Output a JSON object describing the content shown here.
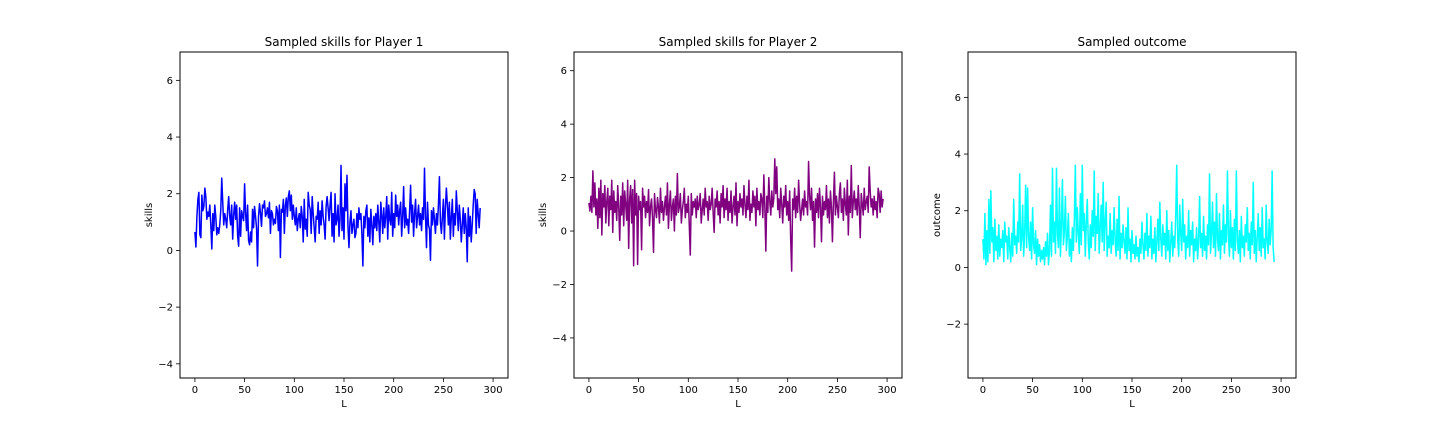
{
  "chart_data": [
    {
      "type": "line",
      "title": "Sampled skills for Player 1",
      "xlabel": "L",
      "ylabel": "skills",
      "xlim": [
        -15,
        315
      ],
      "ylim": [
        -4.5,
        7.0
      ],
      "xticks": [
        0,
        50,
        100,
        150,
        200,
        250,
        300
      ],
      "yticks": [
        -4,
        -2,
        0,
        2,
        4,
        6
      ],
      "grid": false,
      "series": [
        {
          "color": "#0000ff",
          "y": [
            0.65,
            0.12,
            1.2,
            1.8,
            2.05,
            0.55,
            0.45,
            1.95,
            1.4,
            1.55,
            2.2,
            1.9,
            1.1,
            1.35,
            1.2,
            1.6,
            0.9,
            0.05,
            1.3,
            0.7,
            1.6,
            1.2,
            0.55,
            0.8,
            0.6,
            0.9,
            1.4,
            2.55,
            1.7,
            0.9,
            1.3,
            1.1,
            0.8,
            1.45,
            1.9,
            1.2,
            0.9,
            1.6,
            0.4,
            1.25,
            1.7,
            1.1,
            1.6,
            0.5,
            0.15,
            1.5,
            0.5,
            1.4,
            1.2,
            1.05,
            2.35,
            1.3,
            0.7,
            1.6,
            0.35,
            0.2,
            0.65,
            0.3,
            1.45,
            0.8,
            1.55,
            1.2,
            0.8,
            -0.55,
            1.2,
            1.65,
            1.3,
            0.85,
            1.6,
            1.5,
            1.75,
            1.2,
            1.3,
            1.5,
            1.15,
            1.7,
            0.6,
            1.4,
            1.3,
            0.9,
            1.1,
            0.95,
            1.55,
            1.4,
            0.7,
            1.6,
            -0.25,
            1.45,
            1.35,
            1.8,
            0.6,
            1.6,
            1.85,
            1.2,
            1.9,
            2.1,
            1.4,
            1.95,
            1.1,
            1.6,
            1.2,
            0.9,
            1.5,
            0.7,
            1.1,
            1.3,
            0.8,
            1.55,
            1.2,
            0.3,
            1.8,
            0.75,
            1.1,
            0.5,
            2.05,
            1.6,
            1.45,
            0.6,
            1.9,
            1.3,
            0.8,
            0.3,
            1.2,
            1.1,
            1.7,
            0.6,
            1.4,
            0.9,
            1.75,
            1.2,
            0.9,
            0.4,
            1.55,
            1.9,
            1.5,
            1.05,
            1.6,
            2.05,
            0.5,
            1.3,
            0.3,
            2.0,
            0.9,
            1.1,
            1.6,
            0.5,
            1.1,
            3.0,
            0.7,
            1.5,
            0.4,
            2.35,
            1.4,
            2.65,
            0.85,
            0.1,
            1.0,
            1.4,
            0.6,
            0.9,
            1.1,
            0.45,
            0.6,
            1.3,
            0.8,
            1.5,
            1.1,
            1.3,
            0.6,
            -0.55,
            1.2,
            0.8,
            1.4,
            1.6,
            0.5,
            1.15,
            0.3,
            1.45,
            0.9,
            0.2,
            1.2,
            0.8,
            1.3,
            0.7,
            1.6,
            1.0,
            0.3,
            1.7,
            1.25,
            0.6,
            1.5,
            0.8,
            1.2,
            1.9,
            0.4,
            1.6,
            1.1,
            0.9,
            2.05,
            0.5,
            1.3,
            0.8,
            1.95,
            1.2,
            1.6,
            0.9,
            1.4,
            1.7,
            0.5,
            1.2,
            2.25,
            0.8,
            1.5,
            0.9,
            1.1,
            0.6,
            1.4,
            2.3,
            1.0,
            1.6,
            0.5,
            1.3,
            1.8,
            0.8,
            1.2,
            1.6,
            0.9,
            1.3,
            0.7,
            1.5,
            1.1,
            2.9,
            1.2,
            0.1,
            1.7,
            0.9,
            0.75,
            -0.35,
            1.4,
            0.9,
            1.5,
            1.1,
            0.6,
            1.3,
            0.9,
            1.6,
            2.6,
            1.0,
            0.6,
            1.2,
            1.8,
            0.4,
            1.5,
            2.2,
            1.6,
            0.9,
            1.7,
            0.4,
            1.2,
            1.8,
            0.5,
            1.3,
            0.9,
            2.1,
            1.4,
            0.7,
            1.6,
            1.1,
            0.3,
            0.9,
            1.5,
            0.6,
            1.3,
            0.8,
            -0.4,
            1.5,
            0.5,
            1.2,
            0.3,
            0.9,
            1.6,
            2.15,
            2.0,
            0.6,
            1.8,
            1.3,
            0.8,
            1.5
          ],
          "y_note_omitted": ""
        }
      ]
    },
    {
      "type": "line",
      "title": "Sampled skills for Player 2",
      "xlabel": "L",
      "ylabel": "skills",
      "xlim": [
        -15,
        315
      ],
      "ylim": [
        -5.5,
        6.7
      ],
      "xticks": [
        0,
        50,
        100,
        150,
        200,
        250,
        300
      ],
      "yticks": [
        -4,
        -2,
        0,
        2,
        4,
        6
      ],
      "grid": false,
      "series": [
        {
          "color": "#800080",
          "y": [
            1.05,
            0.75,
            1.3,
            0.7,
            2.25,
            0.9,
            1.8,
            0.6,
            1.2,
            0.1,
            1.6,
            0.5,
            1.9,
            -0.15,
            1.4,
            0.9,
            1.7,
            0.3,
            1.1,
            1.6,
            0.2,
            1.3,
            0.8,
            1.9,
            -0.05,
            1.5,
            0.7,
            1.1,
            0.4,
            1.7,
            0.9,
            -0.35,
            1.3,
            0.6,
            1.8,
            0.2,
            1.5,
            1.0,
            0.4,
            1.9,
            -0.65,
            1.2,
            1.7,
            0.3,
            1.55,
            -1.3,
            1.9,
            0.6,
            1.4,
            -1.25,
            1.3,
            0.8,
            1.1,
            -0.7,
            1.6,
            0.9,
            1.3,
            0.5,
            1.1,
            0.7,
            1.55,
            0.2,
            0.9,
            1.2,
            0.5,
            -0.8,
            1.4,
            0.8,
            0.5,
            1.25,
            0.9,
            0.3,
            1.6,
            0.7,
            1.1,
            0.4,
            0.9,
            1.3,
            0.6,
            1.8,
            0.1,
            1.0,
            1.5,
            0.4,
            0.9,
            1.2,
            0.0,
            1.3,
            0.6,
            2.15,
            0.7,
            0.9,
            1.4,
            0.3,
            0.8,
            1.1,
            1.6,
            0.5,
            1.0,
            0.7,
            1.3,
            0.2,
            -0.9,
            1.4,
            0.6,
            1.1,
            0.9,
            1.2,
            0.5,
            1.3,
            0.8,
            1.0,
            1.4,
            0.3,
            0.8,
            1.2,
            0.6,
            1.6,
            0.9,
            1.1,
            0.4,
            1.3,
            0.8,
            1.0,
            1.6,
            0.7,
            -0.05,
            1.2,
            0.9,
            1.5,
            0.6,
            1.1,
            0.3,
            1.4,
            0.9,
            1.7,
            0.5,
            1.2,
            0.8,
            1.6,
            0.4,
            1.1,
            0.7,
            1.5,
            0.3,
            0.9,
            1.3,
            0.6,
            1.8,
            0.2,
            1.1,
            0.7,
            1.4,
            0.9,
            1.2,
            0.6,
            1.7,
            1.0,
            0.5,
            1.3,
            0.8,
            1.9,
            0.4,
            1.0,
            0.7,
            1.5,
            0.9,
            1.3,
            0.2,
            1.6,
            0.8,
            1.1,
            0.6,
            1.4,
            1.2,
            0.5,
            2.1,
            0.9,
            -0.75,
            1.3,
            0.7,
            2.0,
            1.1,
            0.6,
            1.5,
            0.9,
            1.2,
            2.7,
            1.4,
            2.4,
            0.8,
            1.2,
            0.5,
            1.6,
            1.0,
            0.3,
            1.3,
            0.9,
            1.7,
            0.6,
            1.1,
            0.4,
            1.5,
            -0.3,
            -1.5,
            1.2,
            0.8,
            1.6,
            0.5,
            1.3,
            0.7,
            1.9,
            1.0,
            0.4,
            0.8,
            1.2,
            0.6,
            1.5,
            0.9,
            1.1,
            0.6,
            2.6,
            1.3,
            0.8,
            1.6,
            0.4,
            1.1,
            -0.6,
            1.2,
            0.7,
            1.4,
            0.5,
            1.6,
            0.9,
            -0.4,
            1.3,
            0.6,
            1.1,
            0.8,
            1.7,
            0.5,
            1.2,
            0.3,
            1.5,
            0.9,
            -0.4,
            1.1,
            2.2,
            0.6,
            1.3,
            0.9,
            0.5,
            1.4,
            1.8,
            0.7,
            1.2,
            0.4,
            1.6,
            1.0,
            0.6,
            1.9,
            -0.15,
            1.3,
            0.7,
            2.45,
            0.5,
            1.1,
            1.5,
            0.8,
            1.2,
            0.6,
            1.7,
            0.9,
            -0.25,
            1.4,
            1.0,
            0.6,
            1.6,
            0.8,
            1.1,
            1.3,
            0.7,
            2.4,
            1.5,
            0.9,
            1.2,
            0.6,
            1.3,
            0.8,
            1.1,
            0.5,
            1.6,
            1.4,
            0.7,
            1.5,
            0.9,
            1.2
          ],
          "y_note_omitted": ""
        }
      ]
    },
    {
      "type": "line",
      "title": "Sampled outcome",
      "xlabel": "L",
      "ylabel": "outcome",
      "xlim": [
        -15,
        315
      ],
      "ylim": [
        -3.9,
        7.6
      ],
      "xticks": [
        0,
        50,
        100,
        150,
        200,
        250,
        300
      ],
      "yticks": [
        -2,
        0,
        2,
        4,
        6
      ],
      "grid": false,
      "series": [
        {
          "color": "#00ffff",
          "y": [
            1.0,
            0.3,
            1.9,
            0.1,
            1.3,
            0.2,
            2.4,
            0.5,
            2.7,
            0.9,
            1.4,
            0.2,
            1.7,
            0.6,
            1.1,
            0.3,
            1.5,
            0.4,
            1.0,
            0.7,
            1.3,
            0.2,
            1.6,
            0.9,
            1.1,
            0.3,
            1.4,
            0.7,
            0.2,
            1.2,
            0.4,
            2.4,
            0.8,
            1.1,
            0.5,
            1.6,
            0.9,
            3.3,
            0.6,
            1.0,
            2.2,
            0.4,
            1.2,
            2.9,
            0.7,
            2.8,
            1.1,
            0.6,
            1.6,
            0.3,
            2.1,
            0.8,
            0.5,
            1.3,
            0.1,
            1.0,
            0.4,
            0.8,
            0.2,
            0.6,
            0.3,
            0.7,
            0.1,
            0.9,
            0.4,
            1.2,
            0.1,
            0.6,
            2.2,
            0.4,
            3.5,
            0.9,
            1.6,
            0.5,
            3.5,
            1.2,
            0.7,
            2.8,
            0.4,
            1.5,
            3.1,
            0.8,
            1.3,
            2.5,
            0.6,
            1.1,
            1.9,
            0.4,
            1.0,
            0.2,
            1.4,
            0.6,
            1.7,
            3.6,
            0.9,
            2.1,
            1.2,
            0.5,
            2.6,
            0.8,
            3.6,
            1.3,
            1.9,
            0.4,
            1.6,
            2.4,
            0.9,
            0.3,
            1.5,
            0.7,
            2.0,
            1.1,
            3.4,
            0.6,
            1.8,
            1.2,
            2.6,
            0.5,
            1.4,
            2.2,
            0.9,
            3.0,
            0.6,
            1.6,
            2.3,
            0.4,
            1.1,
            0.7,
            1.9,
            0.5,
            1.3,
            0.8,
            2.1,
            1.0,
            0.4,
            1.7,
            0.6,
            2.5,
            0.3,
            1.2,
            0.7,
            1.5,
            0.9,
            0.5,
            1.4,
            0.3,
            2.1,
            0.6,
            1.0,
            0.2,
            1.3,
            0.5,
            0.8,
            0.3,
            1.1,
            0.4,
            0.7,
            0.2,
            1.0,
            0.5,
            1.6,
            0.8,
            0.3,
            1.2,
            0.6,
            1.9,
            0.4,
            1.1,
            0.7,
            1.8,
            0.3,
            1.0,
            0.5,
            1.4,
            0.2,
            0.9,
            1.7,
            0.6,
            2.3,
            1.0,
            0.4,
            1.5,
            0.8,
            1.2,
            0.3,
            2.0,
            0.6,
            1.3,
            0.2,
            0.9,
            1.6,
            0.4,
            1.1,
            0.7,
            1.8,
            3.6,
            1.0,
            0.4,
            2.2,
            1.2,
            0.6,
            2.4,
            0.9,
            1.5,
            0.3,
            1.1,
            0.7,
            2.0,
            0.4,
            1.3,
            0.8,
            1.6,
            0.2,
            1.0,
            0.6,
            1.4,
            0.3,
            0.9,
            2.5,
            0.7,
            1.2,
            0.4,
            1.8,
            0.6,
            1.1,
            0.3,
            1.5,
            0.8,
            3.3,
            0.5,
            1.2,
            2.3,
            0.7,
            1.6,
            0.4,
            2.6,
            1.0,
            0.6,
            1.9,
            0.3,
            1.3,
            0.8,
            2.2,
            0.5,
            1.5,
            0.9,
            3.4,
            1.2,
            0.4,
            2.0,
            0.7,
            1.4,
            0.3,
            1.7,
            0.6,
            3.4,
            1.0,
            0.5,
            1.3,
            0.2,
            1.8,
            0.7,
            1.1,
            0.4,
            1.5,
            0.9,
            2.1,
            0.6,
            1.2,
            0.3,
            1.6,
            0.8,
            3.0,
            0.5,
            1.3,
            0.2,
            1.1,
            1.9,
            0.6,
            1.4,
            0.4,
            2.1,
            0.7,
            1.0,
            0.3,
            2.2,
            0.9,
            0.5,
            1.7,
            0.8,
            1.3,
            3.4,
            0.7,
            0.2
          ],
          "y_note_omitted": ""
        }
      ]
    }
  ]
}
